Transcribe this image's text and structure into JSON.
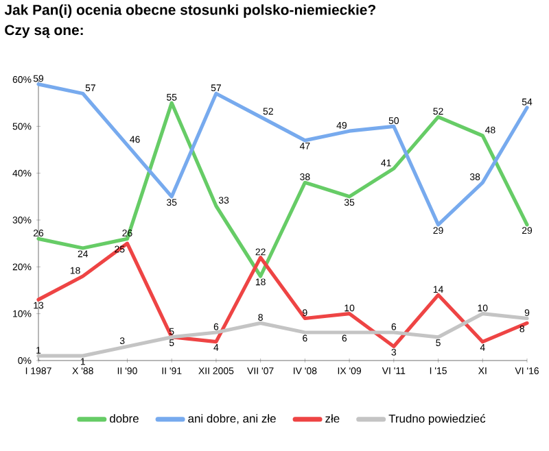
{
  "chart_data": {
    "type": "line",
    "title": "Jak Pan(i) ocenia obecne stosunki polsko-niemieckie?",
    "subtitle": "Czy są one:",
    "categories": [
      "I 1987",
      "X '88",
      "II '90",
      "II '91",
      "XII 2005",
      "VII '07",
      "IV '08",
      "IX '09",
      "VI '11",
      "I '15",
      "XI",
      "VI '16"
    ],
    "series": [
      {
        "name": "dobre",
        "color": "#66cc66",
        "values": [
          26,
          24,
          26,
          55,
          33,
          18,
          38,
          35,
          41,
          52,
          48,
          29
        ]
      },
      {
        "name": "ani dobre, ani złe",
        "color": "#77aaee",
        "values": [
          59,
          57,
          46,
          35,
          57,
          52,
          47,
          49,
          50,
          29,
          38,
          54
        ]
      },
      {
        "name": "złe",
        "color": "#ee4444",
        "values": [
          13,
          18,
          25,
          5,
          4,
          22,
          9,
          10,
          3,
          14,
          4,
          8
        ]
      },
      {
        "name": "Trudno powiedzieć",
        "color": "#c4c4c4",
        "values": [
          1,
          1,
          3,
          5,
          6,
          8,
          6,
          6,
          6,
          5,
          10,
          9
        ]
      }
    ],
    "ylim": [
      0,
      60
    ],
    "yticks": [
      {
        "value": 0,
        "label": "0%"
      },
      {
        "value": 10,
        "label": "10%"
      },
      {
        "value": 20,
        "label": "20%"
      },
      {
        "value": 30,
        "label": "30%"
      },
      {
        "value": 40,
        "label": "40%"
      },
      {
        "value": 50,
        "label": "50%"
      },
      {
        "value": 60,
        "label": "60%"
      }
    ],
    "data_labels": true,
    "legend": "bottom",
    "grid": false,
    "marker": "none",
    "line_style": "solid"
  }
}
